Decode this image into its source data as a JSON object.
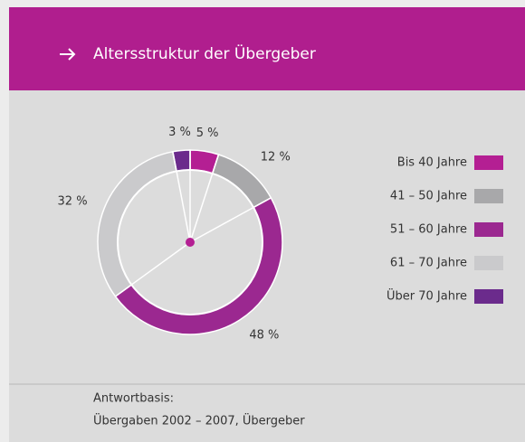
{
  "chart_data": {
    "type": "pie",
    "donut": true,
    "title": "Altersstruktur der Übergeber",
    "categories": [
      "Bis 40 Jahre",
      "41 – 50 Jahre",
      "51 – 60 Jahre",
      "61 – 70 Jahre",
      "Über 70 Jahre"
    ],
    "values": [
      5,
      12,
      48,
      32,
      3
    ],
    "value_labels": [
      "5 %",
      "12 %",
      "48 %",
      "32 %",
      "3 %"
    ],
    "colors": [
      "#b41f93",
      "#a8a8aa",
      "#9b2890",
      "#cacacc",
      "#6b2b8c"
    ],
    "legend": "right",
    "note": [
      "Antwortbasis:",
      "Übergaben 2002 – 2007, Übergeber"
    ]
  }
}
